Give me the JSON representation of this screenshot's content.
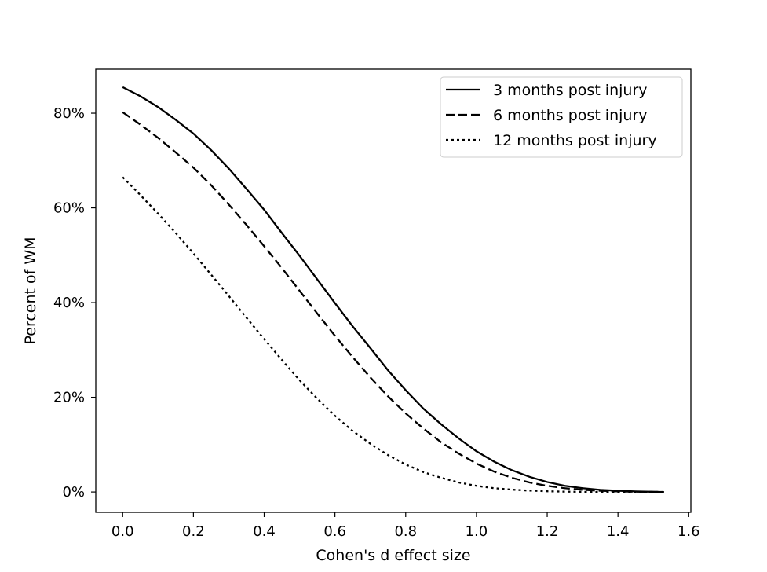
{
  "chart_data": {
    "type": "line",
    "xlabel": "Cohen's d effect size",
    "ylabel": "Percent of WM",
    "xlim": [
      -0.076,
      1.606
    ],
    "ylim": [
      -4.3,
      89.3
    ],
    "xticks": [
      0.0,
      0.2,
      0.4,
      0.6,
      0.8,
      1.0,
      1.2,
      1.4,
      1.6
    ],
    "xtick_labels": [
      "0.0",
      "0.2",
      "0.4",
      "0.6",
      "0.8",
      "1.0",
      "1.2",
      "1.4",
      "1.6"
    ],
    "yticks": [
      0,
      20,
      40,
      60,
      80
    ],
    "ytick_labels": [
      "0%",
      "20%",
      "40%",
      "60%",
      "80%"
    ],
    "grid": false,
    "legend_position": "top-right",
    "x": [
      0.0,
      0.05,
      0.1,
      0.15,
      0.2,
      0.25,
      0.3,
      0.35,
      0.4,
      0.45,
      0.5,
      0.55,
      0.6,
      0.65,
      0.7,
      0.75,
      0.8,
      0.85,
      0.9,
      0.95,
      1.0,
      1.05,
      1.1,
      1.15,
      1.2,
      1.25,
      1.3,
      1.35,
      1.4,
      1.45,
      1.53
    ],
    "series": [
      {
        "name": "3 months post injury",
        "line_style": "solid",
        "color": "#000000",
        "values": [
          85.5,
          83.6,
          81.3,
          78.6,
          75.7,
          72.2,
          68.3,
          64.0,
          59.6,
          54.7,
          49.9,
          44.9,
          39.9,
          35.0,
          30.4,
          25.7,
          21.5,
          17.6,
          14.3,
          11.3,
          8.6,
          6.4,
          4.6,
          3.2,
          2.1,
          1.3,
          0.8,
          0.45,
          0.25,
          0.12,
          0.0
        ]
      },
      {
        "name": "6 months post injury",
        "line_style": "dashed",
        "color": "#000000",
        "values": [
          80.2,
          77.6,
          74.8,
          71.7,
          68.5,
          64.8,
          60.7,
          56.4,
          51.9,
          47.3,
          42.5,
          37.7,
          33.0,
          28.5,
          24.2,
          20.2,
          16.6,
          13.4,
          10.5,
          8.1,
          6.0,
          4.3,
          3.0,
          2.0,
          1.3,
          0.8,
          0.45,
          0.25,
          0.12,
          0.06,
          0.0
        ]
      },
      {
        "name": "12 months post injury",
        "line_style": "dotted",
        "color": "#000000",
        "values": [
          66.5,
          62.7,
          58.8,
          54.7,
          50.4,
          45.9,
          41.4,
          36.8,
          32.3,
          27.9,
          23.6,
          19.7,
          16.1,
          12.9,
          10.2,
          7.8,
          5.8,
          4.2,
          3.0,
          2.0,
          1.3,
          0.8,
          0.5,
          0.28,
          0.15,
          0.07,
          0.03,
          0.015,
          0.007,
          0.003,
          0.0
        ]
      }
    ]
  }
}
